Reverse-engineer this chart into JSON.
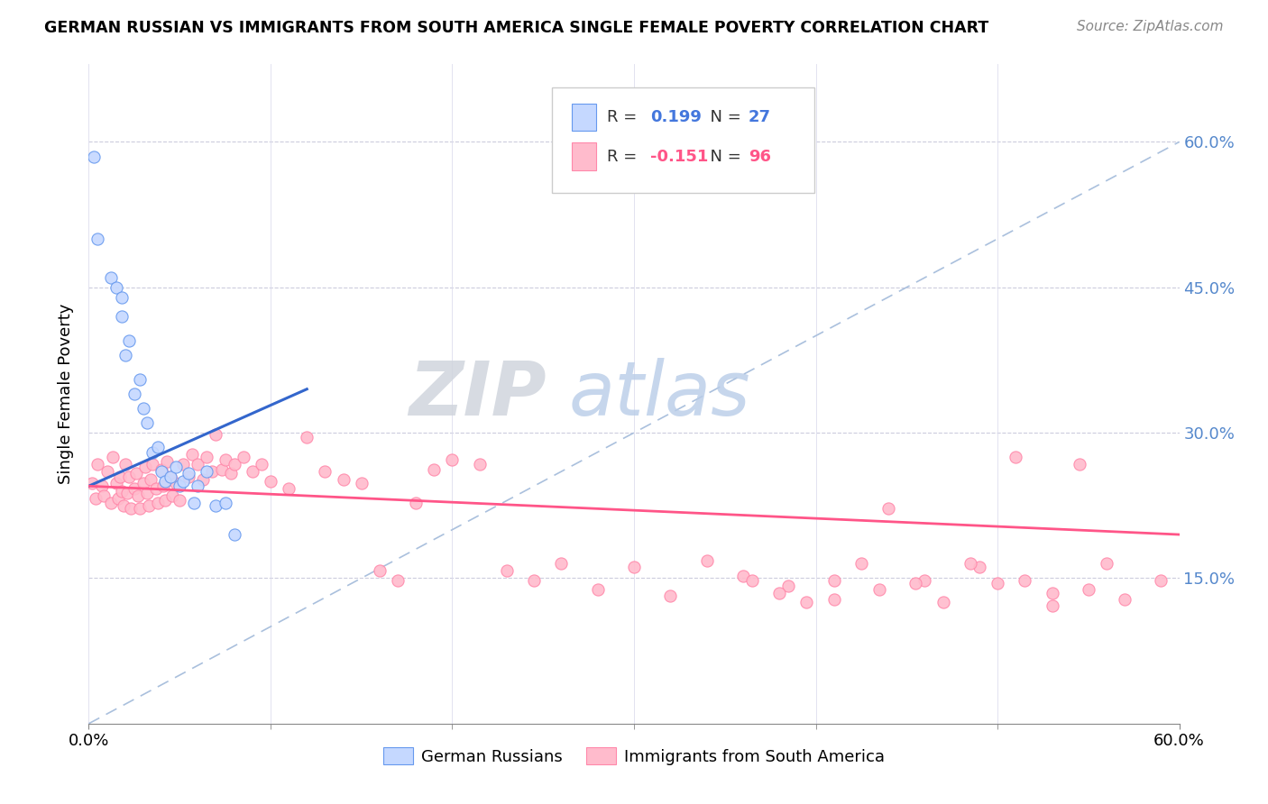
{
  "title": "GERMAN RUSSIAN VS IMMIGRANTS FROM SOUTH AMERICA SINGLE FEMALE POVERTY CORRELATION CHART",
  "source": "Source: ZipAtlas.com",
  "ylabel": "Single Female Poverty",
  "ytick_labels": [
    "15.0%",
    "30.0%",
    "45.0%",
    "60.0%"
  ],
  "ytick_values": [
    0.15,
    0.3,
    0.45,
    0.6
  ],
  "xlim": [
    0.0,
    0.6
  ],
  "ylim": [
    0.0,
    0.68
  ],
  "legend1_R": "0.199",
  "legend1_N": "27",
  "legend2_R": "-0.151",
  "legend2_N": "96",
  "blue_fill": "#c5d8ff",
  "blue_edge": "#6699ee",
  "pink_fill": "#ffbbcc",
  "pink_edge": "#ff88aa",
  "blue_line_color": "#3366cc",
  "pink_line_color": "#ff5588",
  "dashed_line_color": "#aac0dd",
  "watermark_zip": "ZIP",
  "watermark_atlas": "atlas",
  "blue_scatter_x": [
    0.003,
    0.005,
    0.012,
    0.015,
    0.018,
    0.018,
    0.02,
    0.022,
    0.025,
    0.028,
    0.03,
    0.032,
    0.035,
    0.038,
    0.04,
    0.042,
    0.045,
    0.048,
    0.05,
    0.052,
    0.055,
    0.058,
    0.06,
    0.065,
    0.07,
    0.075,
    0.08
  ],
  "blue_scatter_y": [
    0.585,
    0.5,
    0.46,
    0.45,
    0.44,
    0.42,
    0.38,
    0.395,
    0.34,
    0.355,
    0.325,
    0.31,
    0.28,
    0.285,
    0.26,
    0.25,
    0.255,
    0.265,
    0.245,
    0.25,
    0.258,
    0.228,
    0.245,
    0.26,
    0.225,
    0.228,
    0.195
  ],
  "pink_scatter_x": [
    0.002,
    0.004,
    0.005,
    0.007,
    0.008,
    0.01,
    0.012,
    0.013,
    0.015,
    0.016,
    0.017,
    0.018,
    0.019,
    0.02,
    0.021,
    0.022,
    0.023,
    0.025,
    0.026,
    0.027,
    0.028,
    0.03,
    0.031,
    0.032,
    0.033,
    0.034,
    0.035,
    0.037,
    0.038,
    0.04,
    0.041,
    0.042,
    0.043,
    0.045,
    0.046,
    0.048,
    0.05,
    0.052,
    0.055,
    0.057,
    0.06,
    0.063,
    0.065,
    0.068,
    0.07,
    0.073,
    0.075,
    0.078,
    0.08,
    0.085,
    0.09,
    0.095,
    0.1,
    0.11,
    0.12,
    0.13,
    0.14,
    0.15,
    0.16,
    0.17,
    0.18,
    0.19,
    0.2,
    0.215,
    0.23,
    0.245,
    0.26,
    0.28,
    0.3,
    0.32,
    0.34,
    0.36,
    0.385,
    0.41,
    0.435,
    0.46,
    0.49,
    0.51,
    0.53,
    0.55,
    0.57,
    0.59,
    0.56,
    0.545,
    0.53,
    0.515,
    0.5,
    0.485,
    0.47,
    0.455,
    0.44,
    0.425,
    0.41,
    0.395,
    0.38,
    0.365
  ],
  "pink_scatter_y": [
    0.248,
    0.232,
    0.268,
    0.245,
    0.235,
    0.26,
    0.228,
    0.275,
    0.248,
    0.232,
    0.255,
    0.24,
    0.225,
    0.268,
    0.238,
    0.255,
    0.222,
    0.242,
    0.258,
    0.235,
    0.222,
    0.248,
    0.265,
    0.238,
    0.225,
    0.252,
    0.268,
    0.242,
    0.228,
    0.262,
    0.245,
    0.23,
    0.27,
    0.255,
    0.235,
    0.248,
    0.23,
    0.268,
    0.255,
    0.278,
    0.268,
    0.252,
    0.275,
    0.26,
    0.298,
    0.262,
    0.272,
    0.258,
    0.268,
    0.275,
    0.26,
    0.268,
    0.25,
    0.242,
    0.295,
    0.26,
    0.252,
    0.248,
    0.158,
    0.148,
    0.228,
    0.262,
    0.272,
    0.268,
    0.158,
    0.148,
    0.165,
    0.138,
    0.162,
    0.132,
    0.168,
    0.152,
    0.142,
    0.128,
    0.138,
    0.148,
    0.162,
    0.275,
    0.122,
    0.138,
    0.128,
    0.148,
    0.165,
    0.268,
    0.135,
    0.148,
    0.145,
    0.165,
    0.125,
    0.145,
    0.222,
    0.165,
    0.148,
    0.125,
    0.135,
    0.148
  ]
}
